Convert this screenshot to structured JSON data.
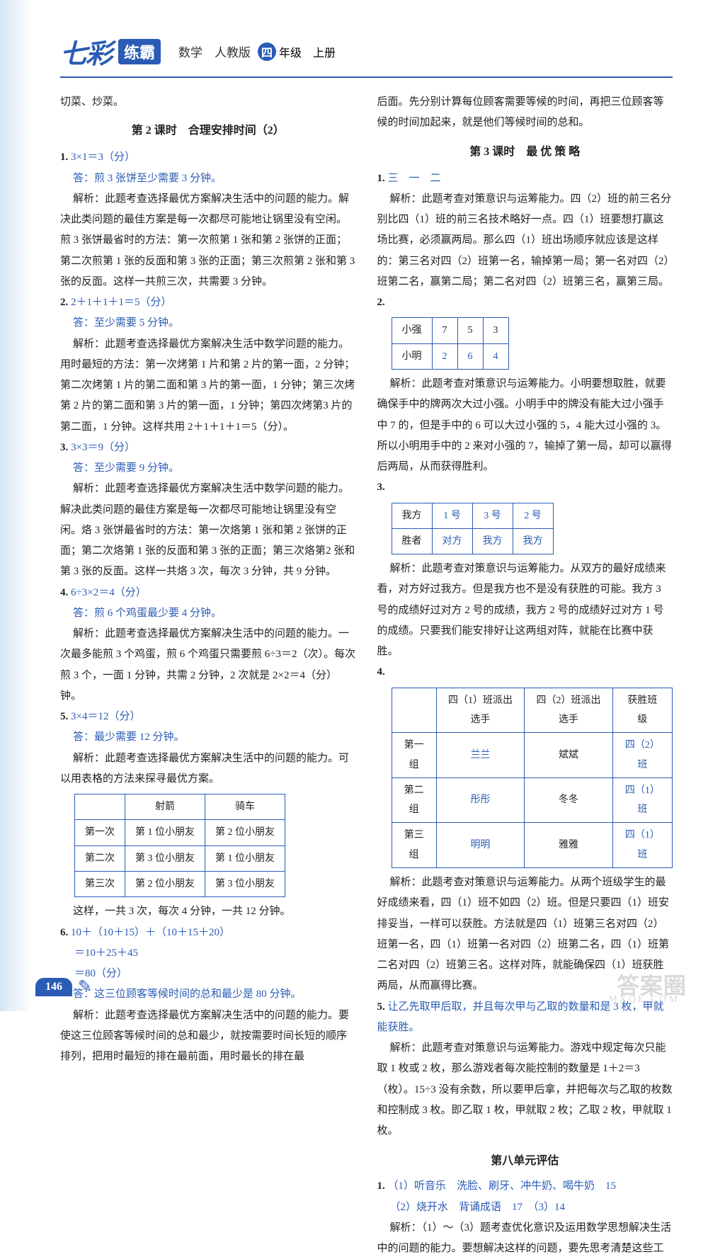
{
  "header": {
    "logo1": "七彩",
    "logo2": "练霸",
    "subject": "数学　人教版",
    "grade_char": "四",
    "grade_rest": "年级　上册"
  },
  "left": {
    "line0": "切菜、炒菜。",
    "lesson2": "第 2 课时　合理安排时间（2）",
    "q1": {
      "num": "1.",
      "ans": "3×1＝3（分）",
      "ansline": "答：煎 3 张饼至少需要 3 分钟。",
      "exp": "解析：此题考查选择最优方案解决生活中的问题的能力。解决此类问题的最佳方案是每一次都尽可能地让锅里没有空闲。煎 3 张饼最省时的方法：第一次煎第 1 张和第 2 张饼的正面；第二次煎第 1 张的反面和第 3 张的正面；第三次煎第 2 张和第 3 张的反面。这样一共煎三次，共需要 3 分钟。"
    },
    "q2": {
      "num": "2.",
      "ans": "2＋1＋1＋1＝5（分）",
      "ansline": "答：至少需要 5 分钟。",
      "exp": "解析：此题考查选择最优方案解决生活中数学问题的能力。用时最短的方法：第一次烤第 1 片和第 2 片的第一面，2 分钟；第二次烤第 1 片的第二面和第 3 片的第一面，1 分钟；第三次烤第 2 片的第二面和第 3 片的第一面，1 分钟；第四次烤第3 片的第二面，1 分钟。这样共用 2＋1＋1＋1＝5（分）。"
    },
    "q3": {
      "num": "3.",
      "ans": "3×3＝9（分）",
      "ansline": "答：至少需要 9 分钟。",
      "exp": "解析：此题考查选择最优方案解决生活中数学问题的能力。解决此类问题的最佳方案是每一次都尽可能地让锅里没有空闲。烙 3 张饼最省时的方法：第一次烙第 1 张和第 2 张饼的正面；第二次烙第 1 张的反面和第 3 张的正面；第三次烙第2 张和第 3 张的反面。这样一共烙 3 次，每次 3 分钟，共 9 分钟。"
    },
    "q4": {
      "num": "4.",
      "ans": "6÷3×2＝4（分）",
      "ansline": "答：煎 6 个鸡蛋最少要 4 分钟。",
      "exp": "解析：此题考查选择最优方案解决生活中的问题的能力。一次最多能煎 3 个鸡蛋，煎 6 个鸡蛋只需要煎 6÷3＝2（次）。每次煎 3 个，一面 1 分钟，共需 2 分钟，2 次就是 2×2＝4（分）钟。"
    },
    "q5": {
      "num": "5.",
      "ans": "3×4＝12（分）",
      "ansline": "答：最少需要 12 分钟。",
      "exp1": "解析：此题考查选择最优方案解决生活中的问题的能力。可以用表格的方法来探寻最优方案。",
      "exp2": "这样，一共 3 次，每次 4 分钟，一共 12 分钟。"
    },
    "q5_table": {
      "cols": [
        "",
        "射箭",
        "骑车"
      ],
      "rows": [
        [
          "第一次",
          "第 1 位小朋友",
          "第 2 位小朋友"
        ],
        [
          "第二次",
          "第 3 位小朋友",
          "第 1 位小朋友"
        ],
        [
          "第三次",
          "第 2 位小朋友",
          "第 3 位小朋友"
        ]
      ]
    },
    "q6": {
      "num": "6.",
      "ans1": "10＋（10＋15）＋（10＋15＋20）",
      "ans2": "＝10＋25＋45",
      "ans3": "＝80（分）",
      "ansline": "答：这三位顾客等候时间的总和最少是 80 分钟。",
      "exp": "解析：此题考查选择最优方案解决生活中的问题的能力。要使这三位顾客等候时间的总和最少，就按需要时间长短的顺序排列，把用时最短的排在最前面，用时最长的排在最"
    }
  },
  "right": {
    "cont": "后面。先分别计算每位顾客需要等候的时间，再把三位顾客等候的时间加起来，就是他们等候时间的总和。",
    "lesson3": "第 3 课时　最 优 策 略",
    "q1": {
      "num": "1.",
      "ans": "三　一　二",
      "exp": "解析：此题考查对策意识与运筹能力。四（2）班的前三名分别比四（1）班的前三名技术略好一点。四（1）班要想打赢这场比赛，必须赢两局。那么四（1）班出场顺序就应该是这样的：第三名对四（2）班第一名，输掉第一局；第一名对四（2）班第二名，赢第二局；第二名对四（2）班第三名，赢第三局。"
    },
    "q2": {
      "num": "2.",
      "exp": "解析：此题考查对策意识与运筹能力。小明要想取胜，就要确保手中的牌两次大过小强。小明手中的牌没有能大过小强手中 7 的，但是手中的 6 可以大过小强的 5，4 能大过小强的 3。所以小明用手中的 2 来对小强的 7，输掉了第一局，却可以赢得后两局，从而获得胜利。"
    },
    "q2_table": {
      "rows": [
        [
          "小强",
          "7",
          "5",
          "3"
        ],
        [
          "小明",
          "2",
          "6",
          "4"
        ]
      ]
    },
    "q3": {
      "num": "3.",
      "exp": "解析：此题考查对策意识与运筹能力。从双方的最好成绩来看，对方好过我方。但是我方也不是没有获胜的可能。我方 3 号的成绩好过对方 2 号的成绩，我方 2 号的成绩好过对方 1 号的成绩。只要我们能安排好让这两组对阵，就能在比赛中获胜。"
    },
    "q3_table": {
      "rows": [
        [
          "我方",
          "1 号",
          "3 号",
          "2 号"
        ],
        [
          "胜者",
          "对方",
          "我方",
          "我方"
        ]
      ]
    },
    "q4": {
      "num": "4.",
      "exp": "解析：此题考查对策意识与运筹能力。从两个班级学生的最好成绩来看，四（1）班不如四（2）班。但是只要四（1）班安排妥当，一样可以获胜。方法就是四（1）班第三名对四（2）班第一名，四（1）班第一名对四（2）班第二名，四（1）班第二名对四（2）班第三名。这样对阵，就能确保四（1）班获胜两局，从而赢得比赛。"
    },
    "q4_table": {
      "cols": [
        "",
        "四（1）班派出选手",
        "四（2）班派出选手",
        "获胜班级"
      ],
      "rows": [
        [
          "第一组",
          "兰兰",
          "斌斌",
          "四（2）班"
        ],
        [
          "第二组",
          "彤彤",
          "冬冬",
          "四（1）班"
        ],
        [
          "第三组",
          "明明",
          "雅雅",
          "四（1）班"
        ]
      ]
    },
    "q5": {
      "num": "5.",
      "ans": "让乙先取甲后取，并且每次甲与乙取的数量和是 3 枚，甲就能获胜。",
      "exp": "解析：此题考查对策意识与运筹能力。游戏中规定每次只能取 1 枚或 2 枚，那么游戏者每次能控制的数量是 1＋2＝3（枚）。15÷3 没有余数，所以要甲后拿，并把每次与乙取的枚数和控制成 3 枚。即乙取 1 枚，甲就取 2 枚；乙取 2 枚，甲就取 1 枚。"
    },
    "unit8": "第八单元评估",
    "u1": {
      "num": "1.",
      "a1": "（1）听音乐　洗脸、刷牙、冲牛奶、喝牛奶　15",
      "a2": "（2）烧开水　背诵成语　17　（3）14",
      "exp": "解析：（1）～（3）题考查优化意识及运用数学思想解决生活中的问题的能力。要想解决这样的问题，要先思考清楚这些工"
    }
  },
  "pagenum": "146",
  "watermark": "答案圈",
  "watermark_sub": "MXQE.COM"
}
